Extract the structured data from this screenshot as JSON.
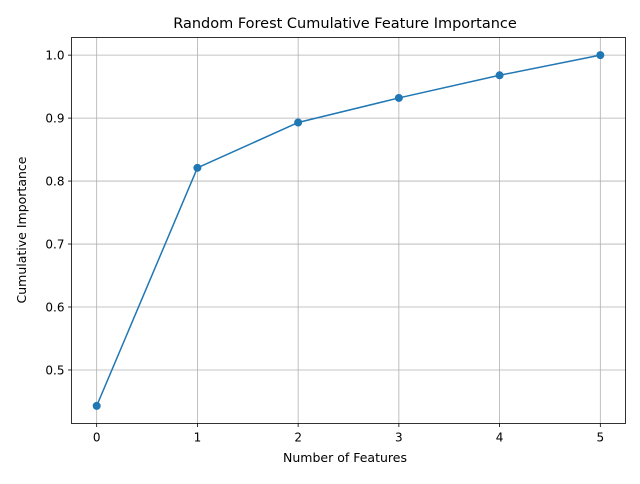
{
  "colors": {
    "series": "#1f77b4",
    "grid": "#b0b0b0"
  },
  "chart_data": {
    "type": "line",
    "title": "Random Forest Cumulative Feature Importance",
    "xlabel": "Number of Features",
    "ylabel": "Cumulative Importance",
    "x": [
      0,
      1,
      2,
      3,
      4,
      5
    ],
    "series": [
      {
        "values": [
          0.443,
          0.821,
          0.893,
          0.932,
          0.968,
          1.0
        ],
        "marker": "circle"
      }
    ],
    "xlim": [
      -0.25,
      5.25
    ],
    "ylim": [
      0.415,
      1.028
    ],
    "xticks": [
      "0",
      "1",
      "2",
      "3",
      "4",
      "5"
    ],
    "yticks": [
      "0.5",
      "0.6",
      "0.7",
      "0.8",
      "0.9",
      "1.0"
    ],
    "grid": true,
    "legend": "none"
  }
}
